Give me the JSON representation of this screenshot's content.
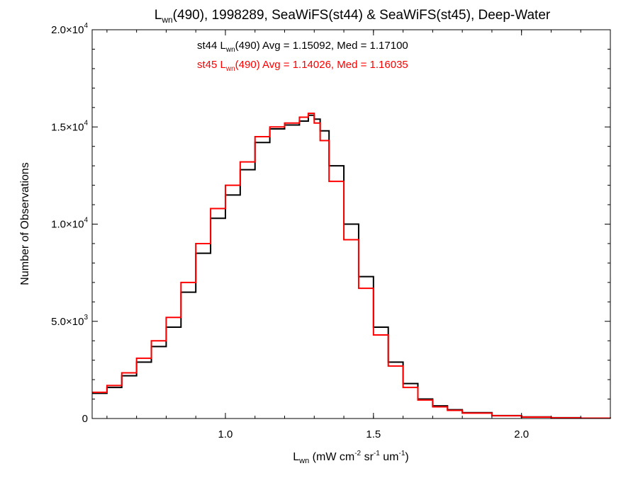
{
  "chart_data": {
    "type": "line",
    "step": true,
    "title": {
      "prefix": "L",
      "sub": "wn",
      "suffix": "(490), 1998289, SeaWiFS(st44) & SeaWiFS(st45), Deep-Water"
    },
    "xlabel": {
      "prefix": "L",
      "sub": "wn",
      "mid": " (mW cm",
      "sup1": "-2",
      "mid2": " sr",
      "sup2": "-1",
      "mid3": " um",
      "sup3": "-1",
      "end": ")"
    },
    "ylabel": "Number of Observations",
    "xlim": [
      0.55,
      2.3
    ],
    "ylim": [
      0,
      20000
    ],
    "xticks": [
      1.0,
      1.5,
      2.0
    ],
    "xtick_labels": [
      "1.0",
      "1.5",
      "2.0"
    ],
    "yticks": [
      {
        "value": 0,
        "mant": "0",
        "exp": ""
      },
      {
        "value": 5000,
        "mant": "5.0×10",
        "exp": "3"
      },
      {
        "value": 10000,
        "mant": "1.0×10",
        "exp": "4"
      },
      {
        "value": 15000,
        "mant": "1.5×10",
        "exp": "4"
      },
      {
        "value": 20000,
        "mant": "2.0×10",
        "exp": "4"
      }
    ],
    "legend": [
      {
        "prefix": "st44 L",
        "sub": "wn",
        "suffix": "(490) Avg = 1.15092, Med = 1.17100",
        "color": "#000000"
      },
      {
        "prefix": "st45 L",
        "sub": "wn",
        "suffix": "(490) Avg = 1.14026, Med = 1.16035",
        "color": "#ff0000"
      }
    ],
    "series": [
      {
        "color": "#000000",
        "x": [
          0.55,
          0.6,
          0.65,
          0.7,
          0.75,
          0.8,
          0.85,
          0.9,
          0.95,
          1.0,
          1.05,
          1.1,
          1.15,
          1.2,
          1.25,
          1.28,
          1.3,
          1.32,
          1.35,
          1.4,
          1.45,
          1.5,
          1.55,
          1.6,
          1.65,
          1.7,
          1.75,
          1.8,
          1.9,
          2.0,
          2.1,
          2.2,
          2.3
        ],
        "y": [
          1300,
          1600,
          2200,
          2900,
          3700,
          4700,
          6500,
          8500,
          10300,
          11500,
          12800,
          14200,
          14900,
          15100,
          15300,
          15600,
          15400,
          14800,
          13000,
          10000,
          7300,
          4700,
          2900,
          1800,
          1000,
          650,
          450,
          300,
          150,
          80,
          40,
          20,
          10
        ]
      },
      {
        "color": "#ff0000",
        "x": [
          0.55,
          0.6,
          0.65,
          0.7,
          0.75,
          0.8,
          0.85,
          0.9,
          0.95,
          1.0,
          1.05,
          1.1,
          1.15,
          1.2,
          1.25,
          1.28,
          1.3,
          1.32,
          1.35,
          1.4,
          1.45,
          1.5,
          1.55,
          1.6,
          1.65,
          1.7,
          1.75,
          1.8,
          1.9,
          2.0,
          2.1,
          2.2,
          2.3
        ],
        "y": [
          1350,
          1700,
          2350,
          3100,
          4000,
          5200,
          7000,
          9000,
          10800,
          12000,
          13200,
          14500,
          15000,
          15200,
          15500,
          15700,
          15200,
          14300,
          12200,
          9200,
          6700,
          4300,
          2700,
          1600,
          950,
          600,
          420,
          280,
          140,
          75,
          35,
          18,
          8
        ]
      }
    ]
  }
}
